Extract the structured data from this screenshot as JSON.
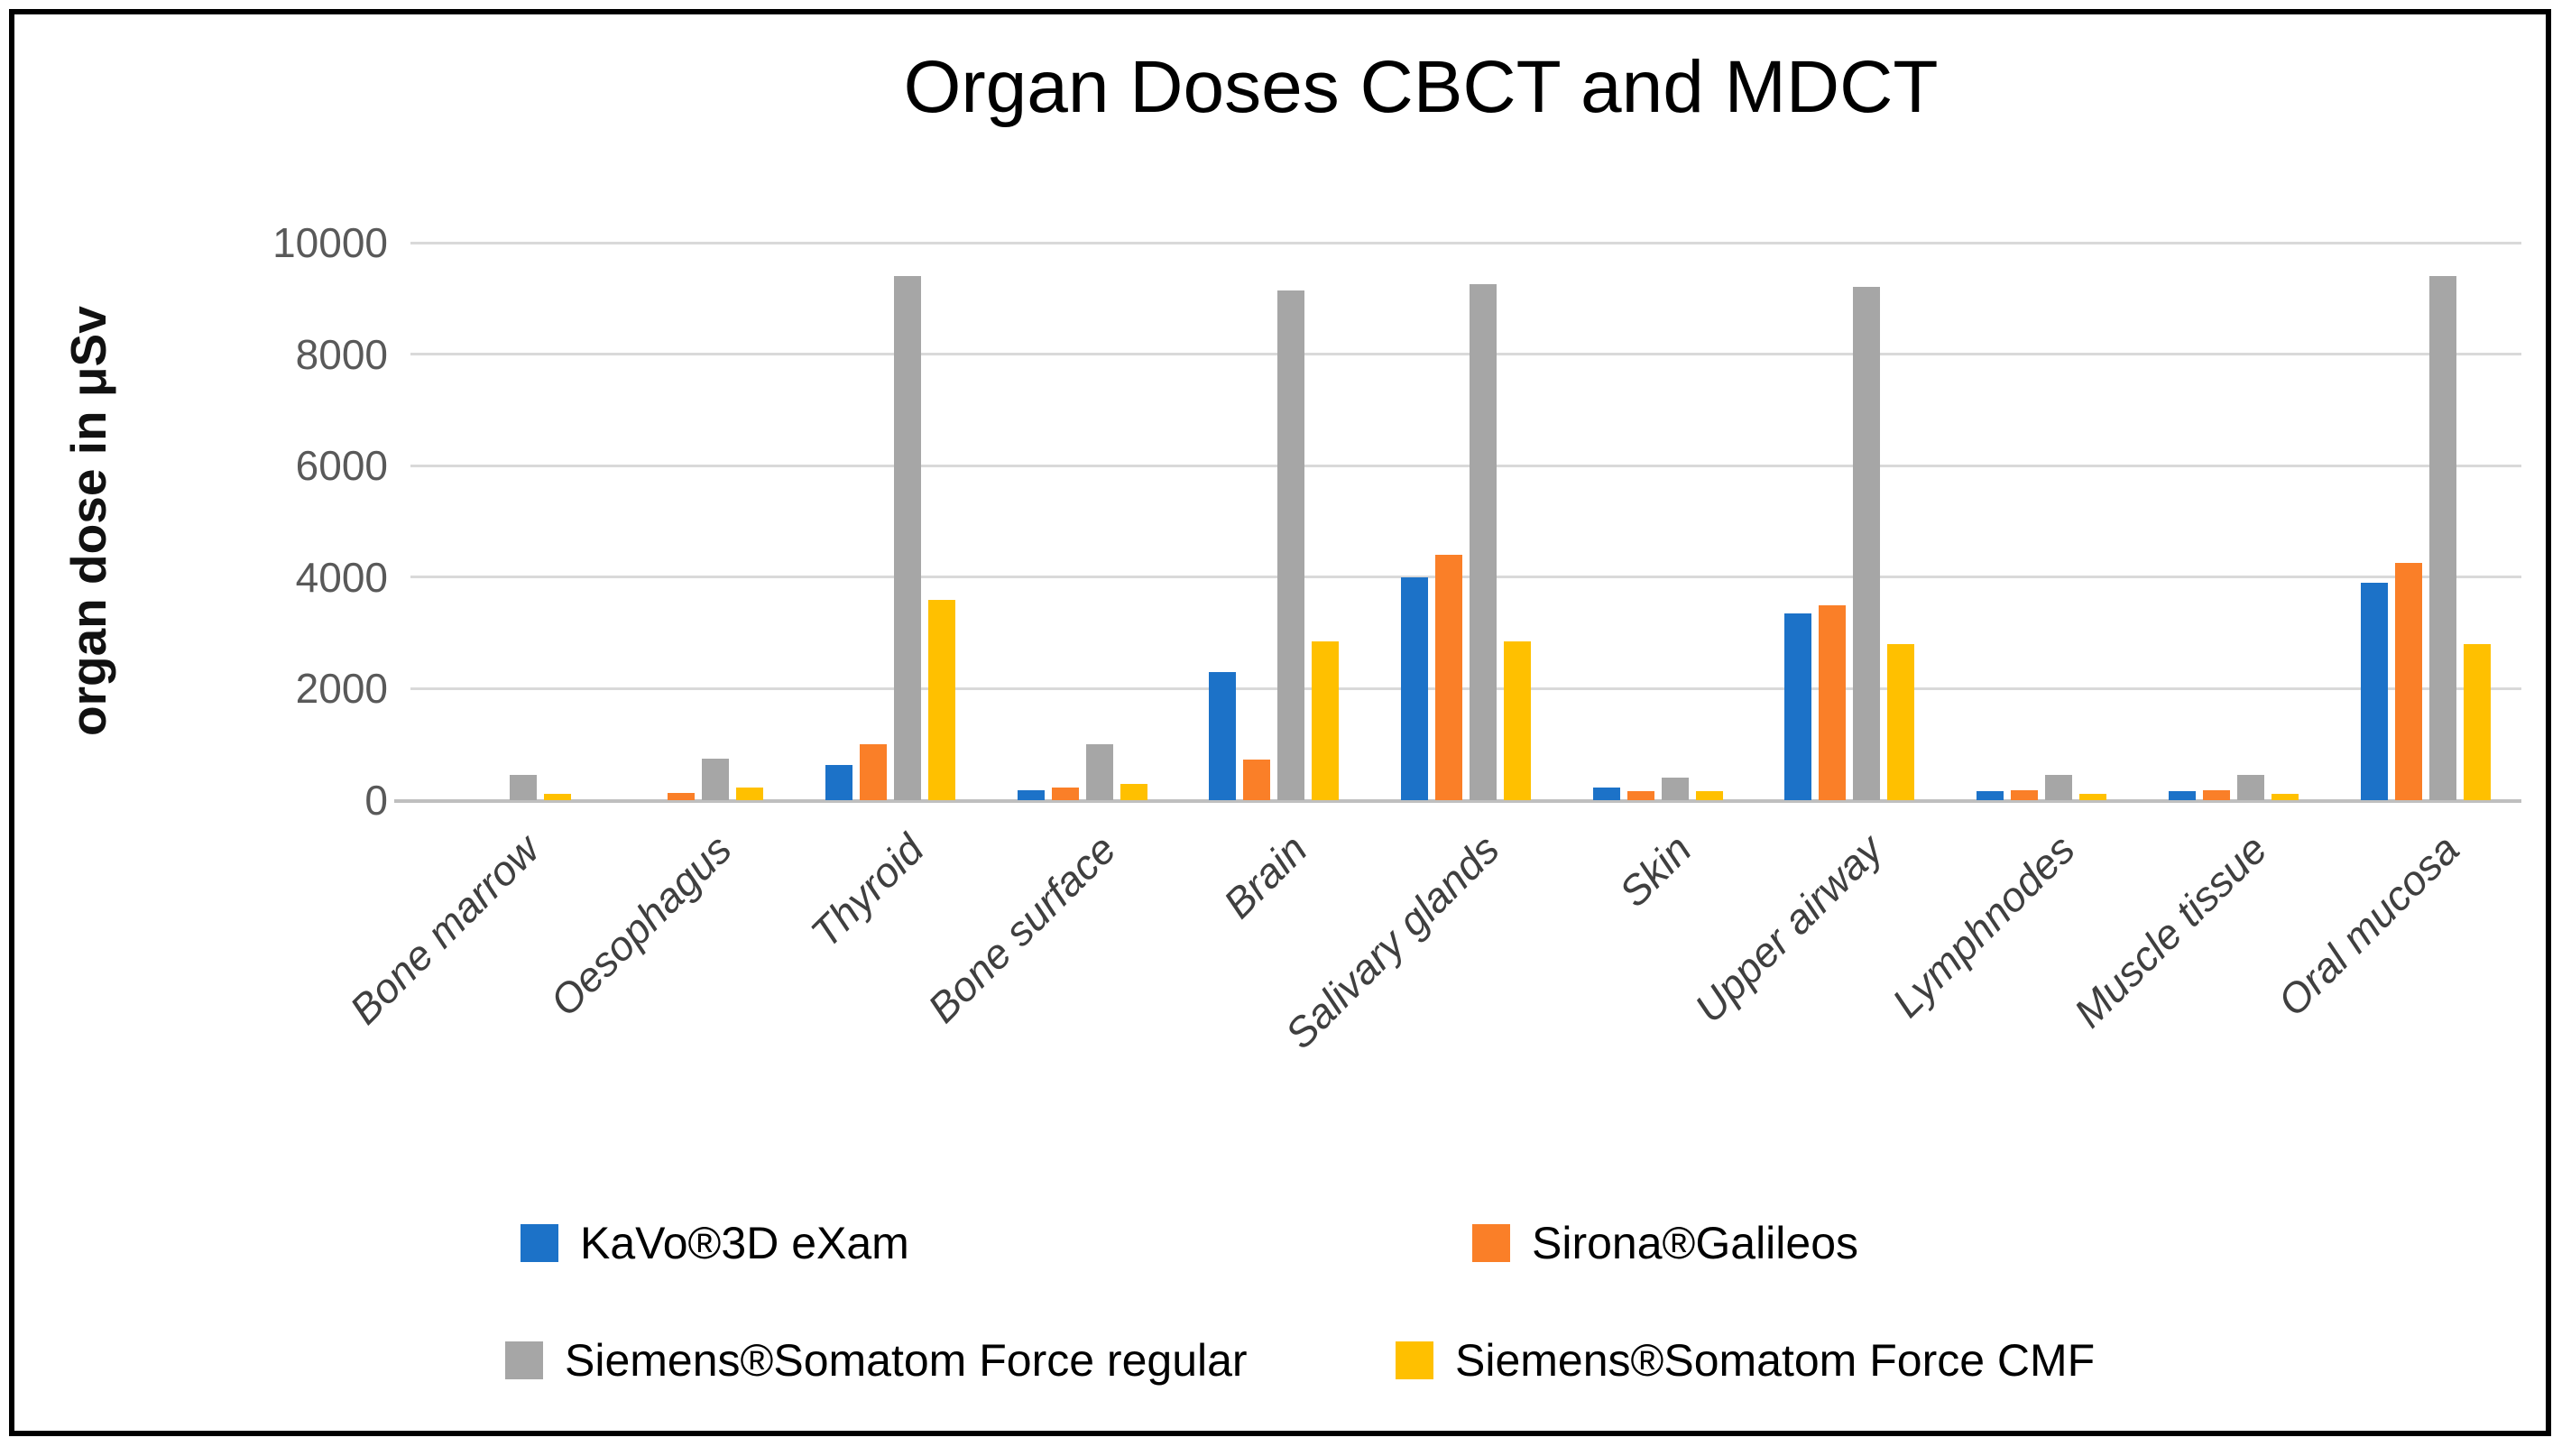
{
  "title": "Organ Doses CBCT and MDCT",
  "y_axis": {
    "label": "organ dose in μSv",
    "tick_labels": [
      "0",
      "2000",
      "4000",
      "6000",
      "8000",
      "10000"
    ]
  },
  "colors": {
    "blue": "#1C72C8",
    "orange": "#FA7F28",
    "gray": "#A6A6A6",
    "yellow": "#FFC000",
    "gridline": "#D9D9D9",
    "axis_line": "#BFBFBF",
    "tick_text": "#595959",
    "category_text": "#3F3F3F"
  },
  "chart_data": {
    "type": "bar",
    "title": "Organ Doses CBCT and MDCT",
    "xlabel": "",
    "ylabel": "organ dose in μSv",
    "ylim": [
      0,
      10000
    ],
    "yticks": [
      0,
      2000,
      4000,
      6000,
      8000,
      10000
    ],
    "grid": true,
    "legend_position": "bottom",
    "categories": [
      "Bone marrow",
      "Oesophagus",
      "Thyroid",
      "Bone surface",
      "Brain",
      "Salivary glands",
      "Skin",
      "Upper airway",
      "Lymphnodes",
      "Muscle tissue",
      "Oral mucosa"
    ],
    "series": [
      {
        "name": "KaVo®3D eXam",
        "color": "#1C72C8",
        "values": [
          0,
          0,
          630,
          170,
          2300,
          4000,
          225,
          3350,
          165,
          165,
          3900
        ]
      },
      {
        "name": "Sirona®Galileos",
        "color": "#FA7F28",
        "values": [
          0,
          130,
          1000,
          225,
          730,
          4400,
          160,
          3500,
          170,
          170,
          4250
        ]
      },
      {
        "name": "Siemens®Somatom Force regular",
        "color": "#A6A6A6",
        "values": [
          450,
          750,
          9400,
          1000,
          9150,
          9250,
          400,
          9200,
          450,
          455,
          9400
        ]
      },
      {
        "name": "Siemens®Somatom Force CMF",
        "color": "#FFC000",
        "values": [
          120,
          225,
          3600,
          290,
          2850,
          2850,
          165,
          2800,
          115,
          115,
          2800
        ]
      }
    ]
  }
}
